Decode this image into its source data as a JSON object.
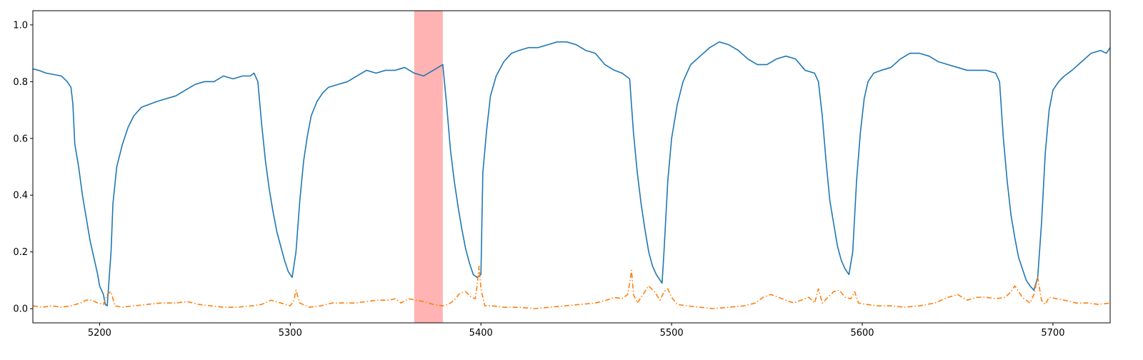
{
  "chart_data": {
    "type": "line",
    "title": "",
    "xlabel": "",
    "ylabel": "",
    "xlim": [
      5165,
      5730
    ],
    "ylim": [
      -0.05,
      1.05
    ],
    "x_ticks": [
      5200,
      5300,
      5400,
      5500,
      5600,
      5700
    ],
    "y_ticks": [
      0.0,
      0.2,
      0.4,
      0.6,
      0.8,
      1.0
    ],
    "y_tick_labels": [
      "0.0",
      "0.2",
      "0.4",
      "0.6",
      "0.8",
      "1.0"
    ],
    "grid": false,
    "legend": "none",
    "highlight_band": {
      "x_start": 5365,
      "x_end": 5380,
      "color": "#ff9999"
    },
    "series": [
      {
        "style": "solid",
        "color": "#1f77b4",
        "points": [
          [
            5165,
            0.845
          ],
          [
            5168,
            0.84
          ],
          [
            5172,
            0.83
          ],
          [
            5176,
            0.825
          ],
          [
            5180,
            0.82
          ],
          [
            5183,
            0.8
          ],
          [
            5185,
            0.78
          ],
          [
            5186,
            0.72
          ],
          [
            5187,
            0.58
          ],
          [
            5189,
            0.5
          ],
          [
            5191,
            0.4
          ],
          [
            5193,
            0.32
          ],
          [
            5195,
            0.24
          ],
          [
            5197,
            0.18
          ],
          [
            5199,
            0.12
          ],
          [
            5200,
            0.08
          ],
          [
            5202,
            0.05
          ],
          [
            5203,
            0.015
          ],
          [
            5204,
            0.01
          ],
          [
            5206,
            0.2
          ],
          [
            5207,
            0.37
          ],
          [
            5209,
            0.5
          ],
          [
            5212,
            0.58
          ],
          [
            5215,
            0.64
          ],
          [
            5218,
            0.68
          ],
          [
            5222,
            0.71
          ],
          [
            5226,
            0.72
          ],
          [
            5230,
            0.73
          ],
          [
            5235,
            0.74
          ],
          [
            5240,
            0.75
          ],
          [
            5245,
            0.77
          ],
          [
            5250,
            0.79
          ],
          [
            5255,
            0.8
          ],
          [
            5260,
            0.8
          ],
          [
            5265,
            0.82
          ],
          [
            5270,
            0.81
          ],
          [
            5275,
            0.82
          ],
          [
            5279,
            0.82
          ],
          [
            5281,
            0.83
          ],
          [
            5283,
            0.8
          ],
          [
            5285,
            0.65
          ],
          [
            5287,
            0.52
          ],
          [
            5289,
            0.42
          ],
          [
            5291,
            0.34
          ],
          [
            5293,
            0.27
          ],
          [
            5295,
            0.22
          ],
          [
            5297,
            0.17
          ],
          [
            5299,
            0.13
          ],
          [
            5301,
            0.11
          ],
          [
            5303,
            0.2
          ],
          [
            5305,
            0.38
          ],
          [
            5307,
            0.52
          ],
          [
            5309,
            0.61
          ],
          [
            5311,
            0.68
          ],
          [
            5314,
            0.73
          ],
          [
            5317,
            0.76
          ],
          [
            5320,
            0.78
          ],
          [
            5325,
            0.79
          ],
          [
            5330,
            0.8
          ],
          [
            5335,
            0.82
          ],
          [
            5340,
            0.84
          ],
          [
            5345,
            0.83
          ],
          [
            5350,
            0.84
          ],
          [
            5355,
            0.84
          ],
          [
            5360,
            0.85
          ],
          [
            5365,
            0.83
          ],
          [
            5370,
            0.82
          ],
          [
            5375,
            0.84
          ],
          [
            5380,
            0.86
          ],
          [
            5382,
            0.72
          ],
          [
            5384,
            0.56
          ],
          [
            5386,
            0.45
          ],
          [
            5388,
            0.36
          ],
          [
            5390,
            0.28
          ],
          [
            5392,
            0.21
          ],
          [
            5394,
            0.16
          ],
          [
            5396,
            0.12
          ],
          [
            5398,
            0.11
          ],
          [
            5400,
            0.12
          ],
          [
            5401,
            0.48
          ],
          [
            5403,
            0.63
          ],
          [
            5405,
            0.75
          ],
          [
            5408,
            0.82
          ],
          [
            5412,
            0.87
          ],
          [
            5416,
            0.9
          ],
          [
            5420,
            0.91
          ],
          [
            5425,
            0.92
          ],
          [
            5430,
            0.92
          ],
          [
            5435,
            0.93
          ],
          [
            5440,
            0.94
          ],
          [
            5445,
            0.94
          ],
          [
            5450,
            0.93
          ],
          [
            5455,
            0.91
          ],
          [
            5460,
            0.9
          ],
          [
            5465,
            0.86
          ],
          [
            5470,
            0.84
          ],
          [
            5474,
            0.83
          ],
          [
            5476,
            0.82
          ],
          [
            5478,
            0.81
          ],
          [
            5480,
            0.62
          ],
          [
            5482,
            0.48
          ],
          [
            5484,
            0.37
          ],
          [
            5486,
            0.28
          ],
          [
            5488,
            0.2
          ],
          [
            5490,
            0.15
          ],
          [
            5492,
            0.12
          ],
          [
            5494,
            0.1
          ],
          [
            5495,
            0.09
          ],
          [
            5496,
            0.2
          ],
          [
            5498,
            0.45
          ],
          [
            5500,
            0.6
          ],
          [
            5503,
            0.72
          ],
          [
            5506,
            0.8
          ],
          [
            5510,
            0.86
          ],
          [
            5515,
            0.89
          ],
          [
            5520,
            0.92
          ],
          [
            5525,
            0.94
          ],
          [
            5530,
            0.93
          ],
          [
            5535,
            0.91
          ],
          [
            5540,
            0.88
          ],
          [
            5545,
            0.86
          ],
          [
            5550,
            0.86
          ],
          [
            5555,
            0.88
          ],
          [
            5560,
            0.89
          ],
          [
            5565,
            0.88
          ],
          [
            5570,
            0.84
          ],
          [
            5575,
            0.83
          ],
          [
            5577,
            0.8
          ],
          [
            5579,
            0.68
          ],
          [
            5581,
            0.52
          ],
          [
            5583,
            0.38
          ],
          [
            5585,
            0.3
          ],
          [
            5587,
            0.22
          ],
          [
            5589,
            0.17
          ],
          [
            5591,
            0.14
          ],
          [
            5593,
            0.12
          ],
          [
            5595,
            0.2
          ],
          [
            5597,
            0.45
          ],
          [
            5599,
            0.62
          ],
          [
            5601,
            0.74
          ],
          [
            5603,
            0.8
          ],
          [
            5606,
            0.83
          ],
          [
            5610,
            0.84
          ],
          [
            5615,
            0.85
          ],
          [
            5620,
            0.88
          ],
          [
            5625,
            0.9
          ],
          [
            5630,
            0.9
          ],
          [
            5635,
            0.89
          ],
          [
            5640,
            0.87
          ],
          [
            5645,
            0.86
          ],
          [
            5650,
            0.85
          ],
          [
            5655,
            0.84
          ],
          [
            5660,
            0.84
          ],
          [
            5665,
            0.84
          ],
          [
            5670,
            0.83
          ],
          [
            5672,
            0.8
          ],
          [
            5674,
            0.6
          ],
          [
            5676,
            0.45
          ],
          [
            5678,
            0.33
          ],
          [
            5680,
            0.25
          ],
          [
            5682,
            0.18
          ],
          [
            5684,
            0.14
          ],
          [
            5686,
            0.1
          ],
          [
            5688,
            0.08
          ],
          [
            5690,
            0.065
          ],
          [
            5692,
            0.11
          ],
          [
            5694,
            0.3
          ],
          [
            5696,
            0.55
          ],
          [
            5698,
            0.7
          ],
          [
            5700,
            0.77
          ],
          [
            5703,
            0.8
          ],
          [
            5706,
            0.82
          ],
          [
            5710,
            0.84
          ],
          [
            5715,
            0.87
          ],
          [
            5720,
            0.9
          ],
          [
            5725,
            0.91
          ],
          [
            5728,
            0.9
          ],
          [
            5730,
            0.92
          ]
        ]
      },
      {
        "style": "dashdot",
        "color": "#ff7f0e",
        "points": [
          [
            5165,
            0.01
          ],
          [
            5170,
            0.005
          ],
          [
            5175,
            0.01
          ],
          [
            5180,
            0.005
          ],
          [
            5185,
            0.01
          ],
          [
            5190,
            0.02
          ],
          [
            5193,
            0.03
          ],
          [
            5196,
            0.03
          ],
          [
            5199,
            0.02
          ],
          [
            5202,
            0.015
          ],
          [
            5204,
            0.05
          ],
          [
            5206,
            0.06
          ],
          [
            5208,
            0.01
          ],
          [
            5212,
            0.005
          ],
          [
            5218,
            0.01
          ],
          [
            5225,
            0.015
          ],
          [
            5232,
            0.02
          ],
          [
            5240,
            0.02
          ],
          [
            5246,
            0.025
          ],
          [
            5252,
            0.015
          ],
          [
            5258,
            0.01
          ],
          [
            5265,
            0.005
          ],
          [
            5272,
            0.005
          ],
          [
            5280,
            0.01
          ],
          [
            5285,
            0.015
          ],
          [
            5290,
            0.03
          ],
          [
            5295,
            0.02
          ],
          [
            5300,
            0.01
          ],
          [
            5302,
            0.03
          ],
          [
            5303,
            0.065
          ],
          [
            5305,
            0.02
          ],
          [
            5310,
            0.005
          ],
          [
            5316,
            0.01
          ],
          [
            5322,
            0.02
          ],
          [
            5328,
            0.02
          ],
          [
            5334,
            0.02
          ],
          [
            5340,
            0.025
          ],
          [
            5346,
            0.03
          ],
          [
            5352,
            0.03
          ],
          [
            5355,
            0.035
          ],
          [
            5358,
            0.02
          ],
          [
            5362,
            0.035
          ],
          [
            5366,
            0.03
          ],
          [
            5370,
            0.025
          ],
          [
            5375,
            0.015
          ],
          [
            5380,
            0.01
          ],
          [
            5383,
            0.015
          ],
          [
            5386,
            0.03
          ],
          [
            5389,
            0.055
          ],
          [
            5392,
            0.06
          ],
          [
            5395,
            0.04
          ],
          [
            5397,
            0.035
          ],
          [
            5398,
            0.08
          ],
          [
            5399,
            0.15
          ],
          [
            5400,
            0.07
          ],
          [
            5402,
            0.01
          ],
          [
            5406,
            0.01
          ],
          [
            5412,
            0.005
          ],
          [
            5420,
            0.005
          ],
          [
            5428,
            0.0
          ],
          [
            5436,
            0.005
          ],
          [
            5444,
            0.01
          ],
          [
            5452,
            0.015
          ],
          [
            5460,
            0.02
          ],
          [
            5466,
            0.03
          ],
          [
            5470,
            0.04
          ],
          [
            5474,
            0.035
          ],
          [
            5477,
            0.05
          ],
          [
            5478,
            0.09
          ],
          [
            5479,
            0.135
          ],
          [
            5480,
            0.05
          ],
          [
            5482,
            0.02
          ],
          [
            5485,
            0.05
          ],
          [
            5488,
            0.08
          ],
          [
            5491,
            0.06
          ],
          [
            5494,
            0.03
          ],
          [
            5496,
            0.06
          ],
          [
            5498,
            0.07
          ],
          [
            5500,
            0.04
          ],
          [
            5503,
            0.015
          ],
          [
            5508,
            0.01
          ],
          [
            5515,
            0.005
          ],
          [
            5522,
            0.0
          ],
          [
            5530,
            0.005
          ],
          [
            5538,
            0.01
          ],
          [
            5544,
            0.02
          ],
          [
            5548,
            0.04
          ],
          [
            5552,
            0.05
          ],
          [
            5556,
            0.04
          ],
          [
            5560,
            0.03
          ],
          [
            5564,
            0.02
          ],
          [
            5568,
            0.03
          ],
          [
            5572,
            0.04
          ],
          [
            5575,
            0.02
          ],
          [
            5577,
            0.07
          ],
          [
            5579,
            0.02
          ],
          [
            5582,
            0.04
          ],
          [
            5585,
            0.06
          ],
          [
            5588,
            0.065
          ],
          [
            5591,
            0.04
          ],
          [
            5594,
            0.035
          ],
          [
            5596,
            0.06
          ],
          [
            5598,
            0.02
          ],
          [
            5602,
            0.015
          ],
          [
            5608,
            0.01
          ],
          [
            5615,
            0.01
          ],
          [
            5622,
            0.005
          ],
          [
            5630,
            0.01
          ],
          [
            5638,
            0.02
          ],
          [
            5645,
            0.04
          ],
          [
            5650,
            0.05
          ],
          [
            5655,
            0.03
          ],
          [
            5660,
            0.04
          ],
          [
            5665,
            0.04
          ],
          [
            5670,
            0.035
          ],
          [
            5675,
            0.04
          ],
          [
            5678,
            0.06
          ],
          [
            5680,
            0.08
          ],
          [
            5682,
            0.06
          ],
          [
            5684,
            0.04
          ],
          [
            5686,
            0.03
          ],
          [
            5688,
            0.02
          ],
          [
            5690,
            0.05
          ],
          [
            5691,
            0.08
          ],
          [
            5692,
            0.11
          ],
          [
            5694,
            0.03
          ],
          [
            5696,
            0.015
          ],
          [
            5698,
            0.04
          ],
          [
            5702,
            0.035
          ],
          [
            5706,
            0.03
          ],
          [
            5712,
            0.02
          ],
          [
            5718,
            0.02
          ],
          [
            5724,
            0.015
          ],
          [
            5730,
            0.02
          ]
        ]
      }
    ]
  }
}
